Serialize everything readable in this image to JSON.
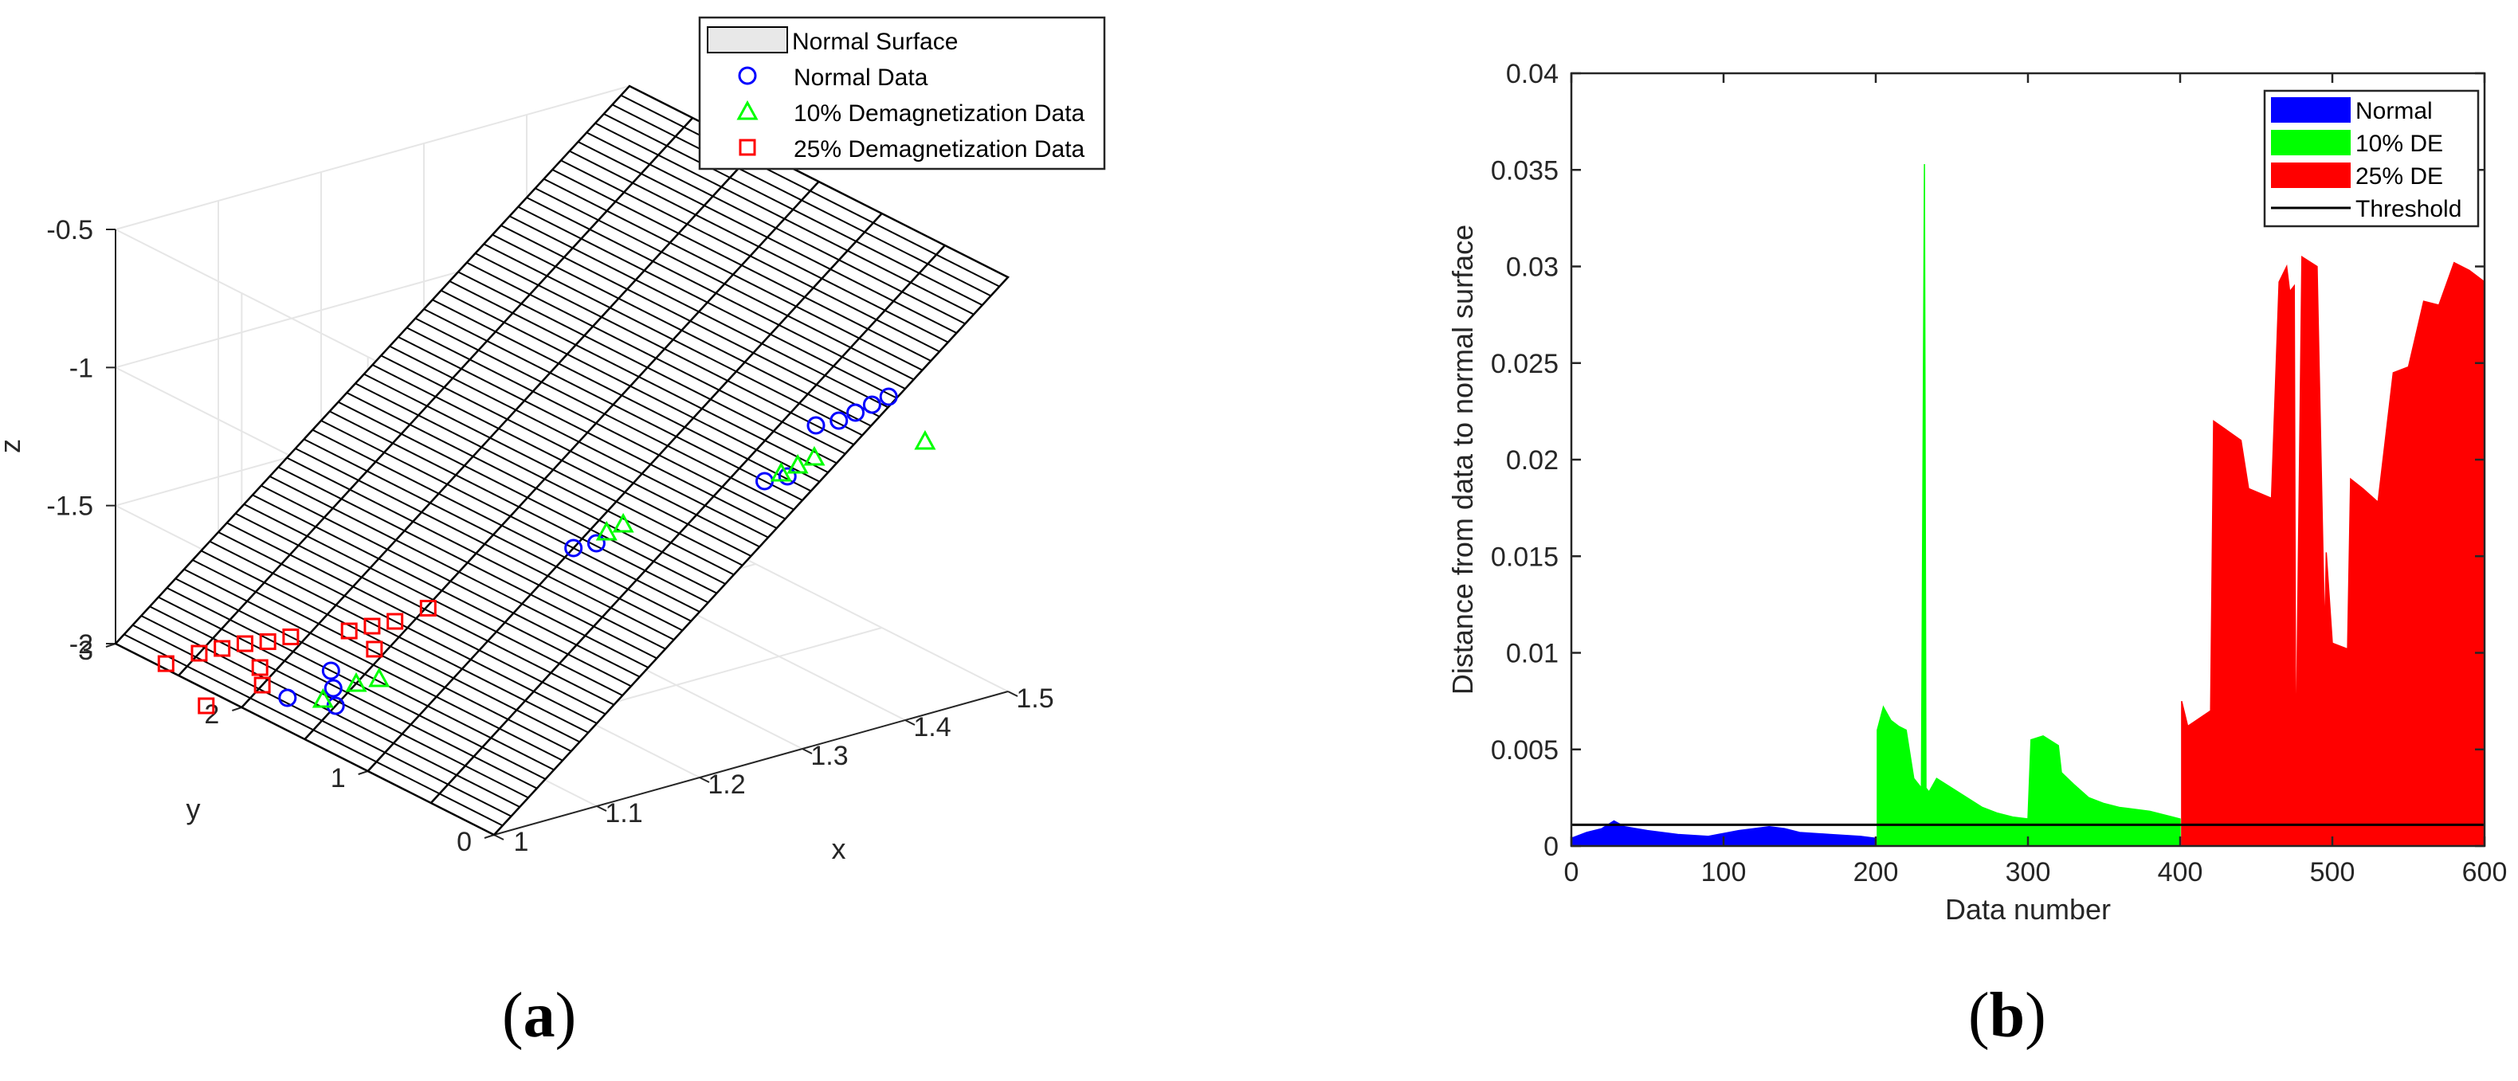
{
  "panel_labels": {
    "a": {
      "open": "(",
      "letter": "a",
      "close": ")"
    },
    "b": {
      "open": "(",
      "letter": "b",
      "close": ")"
    }
  },
  "chart_data": [
    {
      "type": "scatter",
      "panel": "a",
      "title": "",
      "xlabel": "x",
      "ylabel": "y",
      "zlabel": "z",
      "xlim": [
        1,
        1.5
      ],
      "ylim": [
        0,
        3
      ],
      "zlim": [
        -2,
        -0.5
      ],
      "x_ticks": [
        "1",
        "1.1",
        "1.2",
        "1.3",
        "1.4",
        "1.5"
      ],
      "y_ticks": [
        "0",
        "1",
        "2",
        "3"
      ],
      "z_ticks": [
        "-2",
        "-1.5",
        "-1",
        "-0.5"
      ],
      "grid": true,
      "legend_position": "top-right",
      "legend": [
        "Normal Surface",
        "Normal Data",
        "10% Demagnetization Data",
        "25% Demagnetization Data"
      ],
      "surface": {
        "name": "Normal Surface",
        "description": "plane z = -2 + 3*(x - 1), spanning y from 0 to 3",
        "corners": [
          [
            1.0,
            0,
            -2.0
          ],
          [
            1.5,
            0,
            -0.5
          ],
          [
            1.5,
            3,
            -0.5
          ],
          [
            1.0,
            3,
            -2.0
          ]
        ],
        "face_color": "#ffffff",
        "line_color": "#000000"
      },
      "series": [
        {
          "name": "Normal Data",
          "marker": "circle",
          "color": "#0000ff",
          "points": [
            [
              1.02,
              1.8,
              -1.94
            ],
            [
              1.04,
              1.6,
              -1.88
            ],
            [
              1.03,
              1.5,
              -1.91
            ],
            [
              1.05,
              1.7,
              -1.85
            ],
            [
              1.2,
              1.0,
              -1.4
            ],
            [
              1.21,
              0.9,
              -1.37
            ],
            [
              1.3,
              0.3,
              -1.1
            ],
            [
              1.31,
              0.2,
              -1.07
            ],
            [
              1.35,
              0.3,
              -0.95
            ],
            [
              1.36,
              0.2,
              -0.92
            ],
            [
              1.37,
              0.15,
              -0.89
            ],
            [
              1.38,
              0.1,
              -0.86
            ],
            [
              1.39,
              0.05,
              -0.83
            ]
          ]
        },
        {
          "name": "10% Demagnetization Data",
          "marker": "triangle",
          "color": "#00ff00",
          "points": [
            [
              1.03,
              1.6,
              -1.91
            ],
            [
              1.05,
              1.5,
              -1.85
            ],
            [
              1.06,
              1.4,
              -1.82
            ],
            [
              1.22,
              0.9,
              -1.34
            ],
            [
              1.23,
              0.85,
              -1.31
            ],
            [
              1.31,
              0.25,
              -1.07
            ],
            [
              1.32,
              0.2,
              -1.04
            ],
            [
              1.33,
              0.15,
              -1.01
            ],
            [
              1.45,
              0.25,
              -1.1
            ]
          ]
        },
        {
          "name": "25% Demagnetization Data",
          "marker": "square",
          "color": "#ff0000",
          "points": [
            [
              1.0,
              2.6,
              -1.98
            ],
            [
              1.02,
              2.5,
              -1.94
            ],
            [
              1.03,
              2.4,
              -1.91
            ],
            [
              1.04,
              2.3,
              -1.88
            ],
            [
              1.05,
              2.2,
              -1.86
            ],
            [
              1.06,
              2.1,
              -1.83
            ],
            [
              1.02,
              2.0,
              -1.94
            ],
            [
              1.03,
              2.1,
              -1.91
            ],
            [
              1.08,
              1.8,
              -1.76
            ],
            [
              1.09,
              1.7,
              -1.73
            ],
            [
              1.1,
              1.6,
              -1.7
            ],
            [
              1.08,
              1.6,
              -1.78
            ],
            [
              1.12,
              1.5,
              -1.65
            ],
            [
              0.99,
              2.2,
              -2.03
            ]
          ]
        }
      ]
    },
    {
      "type": "area",
      "panel": "b",
      "title": "",
      "xlabel": "Data number",
      "ylabel": "Distance from data to normal surface",
      "xlim": [
        0,
        600
      ],
      "ylim": [
        0,
        0.04
      ],
      "x_ticks": [
        "0",
        "100",
        "200",
        "300",
        "400",
        "500",
        "600"
      ],
      "y_ticks": [
        "0",
        "0.005",
        "0.01",
        "0.015",
        "0.02",
        "0.025",
        "0.03",
        "0.035",
        "0.04"
      ],
      "grid": false,
      "legend_position": "top-right",
      "series": [
        {
          "name": "Normal",
          "color": "#0000ff",
          "x": [
            0,
            10,
            20,
            28,
            35,
            50,
            70,
            90,
            110,
            130,
            140,
            150,
            170,
            190,
            200
          ],
          "y": [
            0.0004,
            0.0007,
            0.0009,
            0.0013,
            0.001,
            0.0008,
            0.0006,
            0.0005,
            0.0008,
            0.001,
            0.0009,
            0.0007,
            0.0006,
            0.0005,
            0.0004
          ]
        },
        {
          "name": "10% DE",
          "color": "#00ff00",
          "x": [
            201,
            205,
            210,
            215,
            220,
            225,
            230,
            232,
            233,
            235,
            240,
            250,
            260,
            270,
            280,
            290,
            300,
            302,
            310,
            320,
            322,
            330,
            340,
            350,
            360,
            380,
            395,
            400
          ],
          "y": [
            0.006,
            0.0072,
            0.0065,
            0.0062,
            0.006,
            0.0035,
            0.003,
            0.0353,
            0.003,
            0.0028,
            0.0035,
            0.003,
            0.0025,
            0.002,
            0.0017,
            0.0015,
            0.0014,
            0.0055,
            0.0057,
            0.0052,
            0.0038,
            0.0032,
            0.0025,
            0.0022,
            0.002,
            0.0018,
            0.0015,
            0.0014
          ]
        },
        {
          "name": "25% DE",
          "color": "#ff0000",
          "x": [
            401,
            405,
            420,
            422,
            440,
            445,
            460,
            465,
            470,
            472,
            475,
            476,
            480,
            490,
            495,
            496,
            500,
            510,
            512,
            520,
            530,
            540,
            550,
            560,
            570,
            580,
            590,
            600
          ],
          "y": [
            0.0075,
            0.0062,
            0.007,
            0.022,
            0.021,
            0.0185,
            0.018,
            0.0292,
            0.03,
            0.0287,
            0.029,
            0.0037,
            0.0305,
            0.03,
            0.0108,
            0.0152,
            0.0105,
            0.0102,
            0.019,
            0.0185,
            0.0178,
            0.0245,
            0.0248,
            0.0282,
            0.028,
            0.0302,
            0.0298,
            0.0292
          ]
        },
        {
          "name": "Threshold",
          "color": "#000000",
          "type": "line",
          "x": [
            0,
            600
          ],
          "y": [
            0.0011,
            0.0011
          ]
        }
      ]
    }
  ]
}
